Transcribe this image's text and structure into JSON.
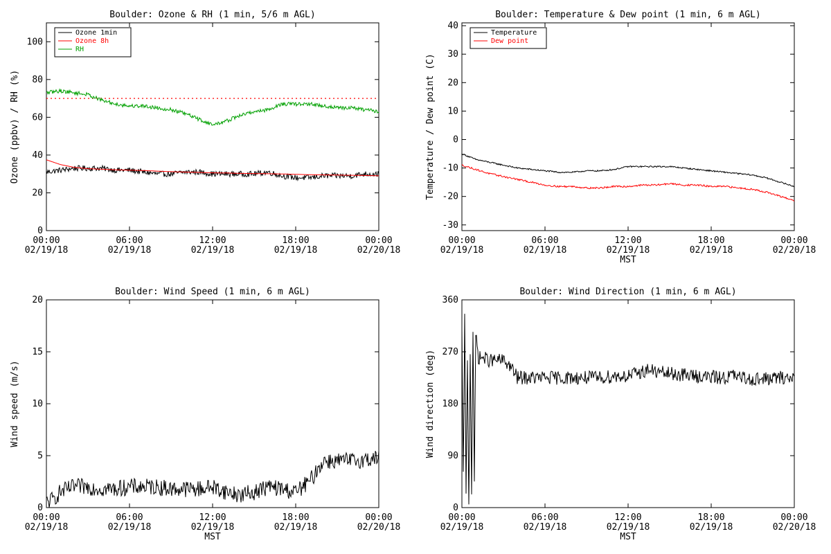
{
  "chart_data": [
    {
      "id": "ozone_rh",
      "type": "line",
      "title": "Boulder: Ozone & RH (1 min, 5/6 m AGL)",
      "xlabel": "",
      "ylabel": "Ozone (ppbv) / RH (%)",
      "ylim": [
        0,
        110
      ],
      "yticks": [
        0,
        20,
        40,
        60,
        80,
        100
      ],
      "xlim_hours": [
        0,
        24
      ],
      "xticks": [
        {
          "hour": 0,
          "time": "00:00",
          "date": "02/19/18"
        },
        {
          "hour": 6,
          "time": "06:00",
          "date": "02/19/18"
        },
        {
          "hour": 12,
          "time": "12:00",
          "date": "02/19/18"
        },
        {
          "hour": 18,
          "time": "18:00",
          "date": "02/19/18"
        },
        {
          "hour": 24,
          "time": "00:00",
          "date": "02/20/18"
        }
      ],
      "legend": {
        "placement": "top-left"
      },
      "reference_line": {
        "y": 70,
        "color": "#ff0000",
        "style": "dotted"
      },
      "series": [
        {
          "name": "Ozone 1min",
          "color": "#000000",
          "noise": 1.5,
          "x": [
            0,
            1,
            2,
            3,
            4,
            5,
            6,
            7,
            8,
            9,
            10,
            11,
            12,
            13,
            14,
            15,
            16,
            17,
            18,
            19,
            20,
            21,
            22,
            23,
            24
          ],
          "y": [
            31,
            32,
            33,
            33,
            33,
            32,
            32,
            31,
            30,
            30,
            31,
            31,
            30,
            30,
            30,
            30,
            31,
            29,
            28,
            28,
            29,
            29,
            29,
            30,
            30
          ]
        },
        {
          "name": "Ozone 8h",
          "color": "#ff0000",
          "noise": 0,
          "x": [
            0,
            1,
            2,
            3,
            4,
            5,
            6,
            7,
            8,
            9,
            10,
            11,
            12,
            13,
            14,
            15,
            16,
            17,
            18,
            19,
            20,
            21,
            22,
            23,
            24
          ],
          "y": [
            37.5,
            35,
            33.5,
            32.8,
            32.5,
            32.2,
            32,
            31.8,
            31.5,
            31.2,
            31,
            30.8,
            30.6,
            30.5,
            30.3,
            30.2,
            30.1,
            30,
            29.8,
            29.6,
            29.5,
            29.4,
            29.3,
            29.2,
            29
          ]
        },
        {
          "name": "RH",
          "color": "#00a000",
          "noise": 1.0,
          "x": [
            0,
            1,
            2,
            3,
            4,
            5,
            6,
            7,
            8,
            9,
            10,
            11,
            12,
            13,
            14,
            15,
            16,
            17,
            18,
            19,
            20,
            21,
            22,
            23,
            24
          ],
          "y": [
            73,
            74,
            73,
            72,
            69,
            67,
            66,
            66,
            65,
            64,
            62,
            59,
            56,
            58,
            61,
            63,
            64,
            67,
            67,
            67,
            66,
            65,
            65,
            64,
            63
          ]
        }
      ]
    },
    {
      "id": "temp_dew",
      "type": "line",
      "title": "Boulder: Temperature & Dew point (1 min, 6 m AGL)",
      "xlabel": "MST",
      "ylabel": "Temperature / Dew point (C)",
      "ylim": [
        -32,
        41
      ],
      "yticks": [
        -30,
        -20,
        -10,
        0,
        10,
        20,
        30,
        40
      ],
      "xlim_hours": [
        0,
        24
      ],
      "xticks": [
        {
          "hour": 0,
          "time": "00:00",
          "date": "02/19/18"
        },
        {
          "hour": 6,
          "time": "06:00",
          "date": "02/19/18"
        },
        {
          "hour": 12,
          "time": "12:00",
          "date": "02/19/18"
        },
        {
          "hour": 18,
          "time": "18:00",
          "date": "02/19/18"
        },
        {
          "hour": 24,
          "time": "00:00",
          "date": "02/20/18"
        }
      ],
      "legend": {
        "placement": "top-left"
      },
      "series": [
        {
          "name": "Temperature",
          "color": "#000000",
          "noise": 0.25,
          "x": [
            0,
            1,
            2,
            3,
            4,
            5,
            6,
            7,
            8,
            9,
            10,
            11,
            12,
            13,
            14,
            15,
            16,
            17,
            18,
            19,
            20,
            21,
            22,
            23,
            24
          ],
          "y": [
            -5,
            -7,
            -8,
            -9,
            -10,
            -10.5,
            -11,
            -11.5,
            -11.5,
            -11,
            -11,
            -10.5,
            -9.5,
            -9.5,
            -9.5,
            -9.5,
            -10,
            -10.5,
            -11,
            -11.5,
            -12,
            -12.5,
            -13.5,
            -15,
            -16.5
          ]
        },
        {
          "name": "Dew point",
          "color": "#ff0000",
          "noise": 0.3,
          "x": [
            0,
            1,
            2,
            3,
            4,
            5,
            6,
            7,
            8,
            9,
            10,
            11,
            12,
            13,
            14,
            15,
            16,
            17,
            18,
            19,
            20,
            21,
            22,
            23,
            24
          ],
          "y": [
            -9,
            -10.5,
            -12,
            -13,
            -14,
            -15,
            -16,
            -16.5,
            -16.5,
            -17,
            -17,
            -16.5,
            -16.5,
            -16,
            -16,
            -15.5,
            -16,
            -16,
            -16.5,
            -16.5,
            -17,
            -17.5,
            -18.5,
            -20,
            -21.5
          ]
        }
      ]
    },
    {
      "id": "wind_speed",
      "type": "line",
      "title": "Boulder: Wind Speed (1 min, 6 m AGL)",
      "xlabel": "MST",
      "ylabel": "Wind speed (m/s)",
      "ylim": [
        0,
        20
      ],
      "yticks": [
        0,
        5,
        10,
        15,
        20
      ],
      "xlim_hours": [
        0,
        24
      ],
      "xticks": [
        {
          "hour": 0,
          "time": "00:00",
          "date": "02/19/18"
        },
        {
          "hour": 6,
          "time": "06:00",
          "date": "02/19/18"
        },
        {
          "hour": 12,
          "time": "12:00",
          "date": "02/19/18"
        },
        {
          "hour": 18,
          "time": "18:00",
          "date": "02/19/18"
        },
        {
          "hour": 24,
          "time": "00:00",
          "date": "02/20/18"
        }
      ],
      "series": [
        {
          "name": "",
          "color": "#000000",
          "noise": 0.8,
          "x": [
            0,
            0.5,
            1,
            2,
            3,
            4,
            5,
            6,
            7,
            8,
            9,
            10,
            11,
            12,
            13,
            14,
            15,
            16,
            17,
            18,
            19,
            19.5,
            20,
            21,
            22,
            23,
            24
          ],
          "y": [
            0.5,
            0.8,
            1.5,
            2,
            2,
            1.8,
            1.8,
            2,
            2,
            2,
            1.8,
            1.8,
            1.8,
            2,
            1.5,
            1.2,
            1.5,
            2,
            1.8,
            1.5,
            2.5,
            3.5,
            4.5,
            4.5,
            4.5,
            4.6,
            4.8
          ]
        }
      ]
    },
    {
      "id": "wind_dir",
      "type": "line",
      "title": "Boulder: Wind Direction (1 min, 6 m AGL)",
      "xlabel": "MST",
      "ylabel": "Wind direction (deg)",
      "ylim": [
        0,
        360
      ],
      "yticks": [
        0,
        90,
        180,
        270,
        360
      ],
      "xlim_hours": [
        0,
        24
      ],
      "xticks": [
        {
          "hour": 0,
          "time": "00:00",
          "date": "02/19/18"
        },
        {
          "hour": 6,
          "time": "06:00",
          "date": "02/19/18"
        },
        {
          "hour": 12,
          "time": "12:00",
          "date": "02/19/18"
        },
        {
          "hour": 18,
          "time": "18:00",
          "date": "02/19/18"
        },
        {
          "hour": 24,
          "time": "00:00",
          "date": "02/20/18"
        }
      ],
      "series": [
        {
          "name": "",
          "color": "#000000",
          "noise": 12,
          "x": [
            0,
            0.1,
            0.2,
            0.3,
            0.4,
            0.5,
            0.6,
            0.7,
            0.8,
            0.9,
            1,
            1.2,
            1.5,
            2,
            3,
            3.5,
            4,
            4.5,
            5,
            6,
            7,
            8,
            9,
            10,
            11,
            12,
            13,
            13.5,
            14,
            15,
            16,
            17,
            18,
            19,
            19.5,
            20,
            21,
            22,
            23,
            24
          ],
          "y": [
            300,
            50,
            330,
            20,
            260,
            0,
            270,
            30,
            310,
            40,
            300,
            260,
            260,
            255,
            255,
            245,
            225,
            225,
            225,
            225,
            225,
            225,
            225,
            225,
            228,
            228,
            235,
            240,
            235,
            232,
            230,
            228,
            226,
            225,
            230,
            225,
            223,
            223,
            225,
            225
          ]
        }
      ]
    }
  ]
}
